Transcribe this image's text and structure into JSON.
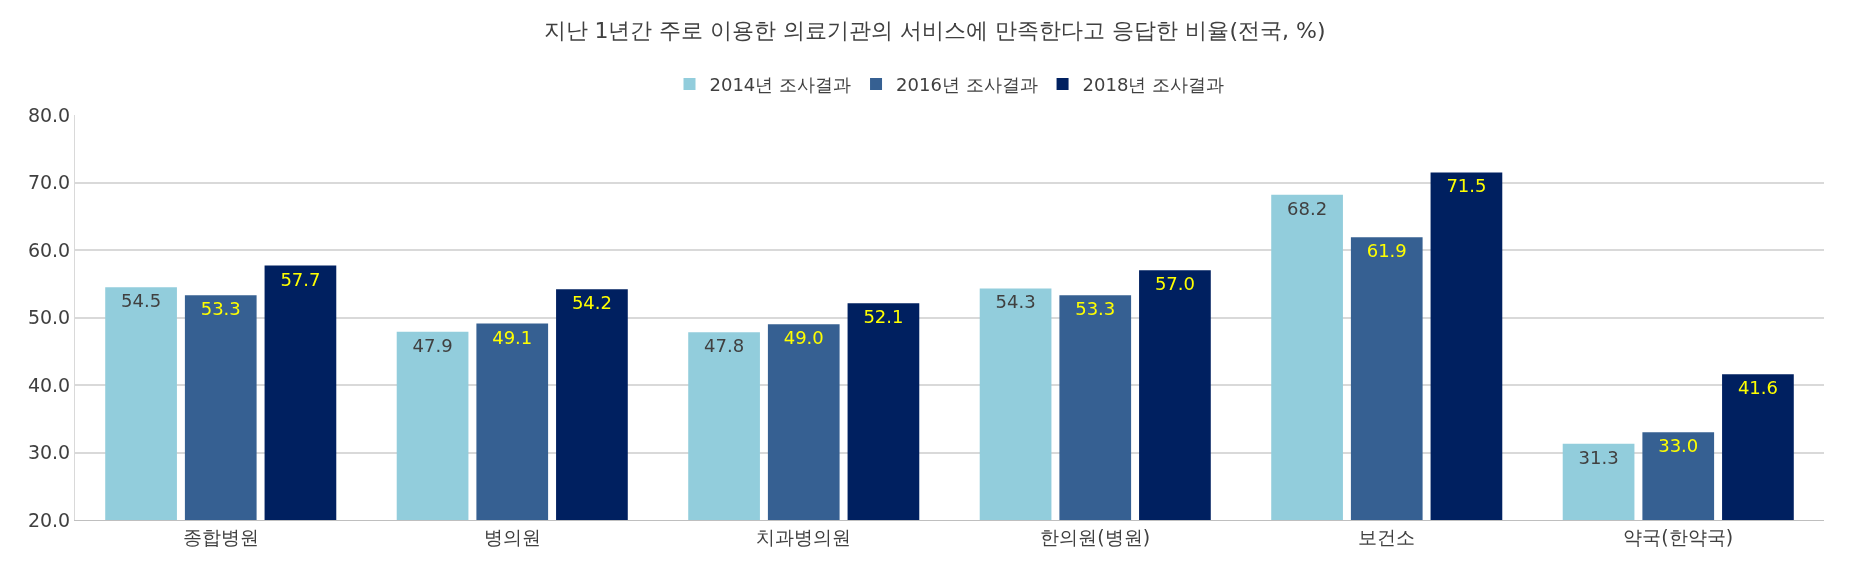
{
  "chart_data": {
    "type": "bar",
    "title": "지난 1년간 주로 이용한 의료기관의 서비스에 만족한다고 응답한 비율(전국, %)",
    "categories": [
      "종합병원",
      "병의원",
      "치과병의원",
      "한의원(병원)",
      "보건소",
      "약국(한약국)"
    ],
    "series": [
      {
        "name": "2014년 조사결과",
        "color": "#92cddc",
        "values": [
          54.5,
          47.9,
          47.8,
          54.3,
          68.2,
          31.3
        ],
        "value_labels": [
          "54.5",
          "47.9",
          "47.8",
          "54.3",
          "68.2",
          "31.3"
        ]
      },
      {
        "name": "2016년 조사결과",
        "color": "#366092",
        "values": [
          53.3,
          49.1,
          49.0,
          53.3,
          61.9,
          33.0
        ],
        "value_labels": [
          "53.3",
          "49.1",
          "49.0",
          "53.3",
          "61.9",
          "33.0"
        ]
      },
      {
        "name": "2018년 조사결과",
        "color": "#002060",
        "values": [
          57.7,
          54.2,
          52.1,
          57.0,
          71.5,
          41.6
        ],
        "value_labels": [
          "57.7",
          "54.2",
          "52.1",
          "57.0",
          "71.5",
          "41.6"
        ]
      }
    ],
    "ylim": [
      20,
      80
    ],
    "yticks": [
      {
        "value": 20,
        "label": "20.0"
      },
      {
        "value": 30,
        "label": "30.0"
      },
      {
        "value": 40,
        "label": "40.0"
      },
      {
        "value": 50,
        "label": "50.0"
      },
      {
        "value": 60,
        "label": "60.0"
      },
      {
        "value": 70,
        "label": "70.0"
      },
      {
        "value": 80,
        "label": "80.0"
      }
    ],
    "grid": "y",
    "legend": "top"
  }
}
